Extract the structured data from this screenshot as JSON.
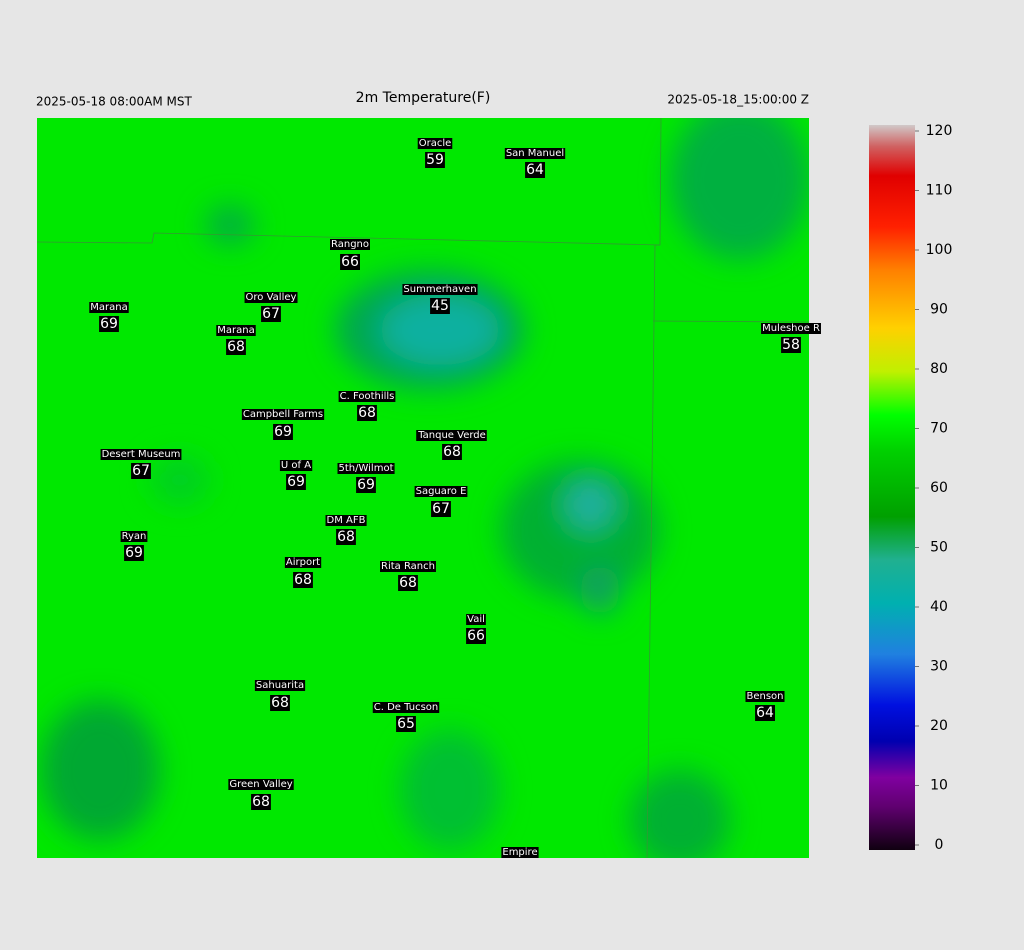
{
  "header": {
    "left": "2025-05-18 08:00AM MST",
    "title": "2m Temperature(F)",
    "right": "2025-05-18_15:00:00 Z"
  },
  "stations": [
    {
      "name": "Oracle",
      "value": 59
    },
    {
      "name": "San Manuel",
      "value": 64
    },
    {
      "name": "Rangno",
      "value": 66
    },
    {
      "name": "Summerhaven",
      "value": 45
    },
    {
      "name": "Marana",
      "value": 69
    },
    {
      "name": "Oro Valley",
      "value": 67
    },
    {
      "name": "Marana",
      "value": 68
    },
    {
      "name": "Muleshoe R",
      "value": 58
    },
    {
      "name": "C. Foothills",
      "value": 68
    },
    {
      "name": "Campbell Farms",
      "value": 69
    },
    {
      "name": "Tanque Verde",
      "value": 68
    },
    {
      "name": "Desert Museum",
      "value": 67
    },
    {
      "name": "U of A",
      "value": 69
    },
    {
      "name": "5th/Wilmot",
      "value": 69
    },
    {
      "name": "Saguaro E",
      "value": 67
    },
    {
      "name": "DM AFB",
      "value": 68
    },
    {
      "name": "Ryan",
      "value": 69
    },
    {
      "name": "Airport",
      "value": 68
    },
    {
      "name": "Rita Ranch",
      "value": 68
    },
    {
      "name": "Vail",
      "value": 66
    },
    {
      "name": "Benson",
      "value": 64
    },
    {
      "name": "Sahuarita",
      "value": 68
    },
    {
      "name": "C. De Tucson",
      "value": 65
    },
    {
      "name": "Green Valley",
      "value": 68
    },
    {
      "name": "Empire",
      "value": null
    }
  ],
  "colorbar": {
    "lim": [
      0,
      120
    ],
    "ticks": [
      0,
      10,
      20,
      30,
      40,
      50,
      60,
      70,
      80,
      90,
      100,
      110,
      120
    ]
  }
}
